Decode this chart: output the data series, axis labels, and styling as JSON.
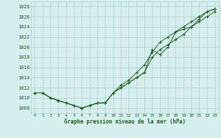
{
  "xlabel": "Graphe pression niveau de la mer (hPa)",
  "ylim": [
    1007,
    1029
  ],
  "xlim": [
    -0.5,
    23.5
  ],
  "yticks": [
    1008,
    1010,
    1012,
    1014,
    1016,
    1018,
    1020,
    1022,
    1024,
    1026,
    1028
  ],
  "xticks": [
    0,
    1,
    2,
    3,
    4,
    5,
    6,
    7,
    8,
    9,
    10,
    11,
    12,
    13,
    14,
    15,
    16,
    17,
    18,
    19,
    20,
    21,
    22,
    23
  ],
  "bg_color": "#d6eeee",
  "grid_color": "#aacccc",
  "line_color": "#1a5c1a",
  "line1_x": [
    0,
    1,
    2,
    3,
    4,
    5,
    6,
    7,
    8,
    9,
    10,
    11,
    12,
    13,
    14,
    15,
    16,
    17,
    18,
    19,
    20,
    21,
    22,
    23
  ],
  "line1_y": [
    1011,
    1011,
    1010,
    1009.5,
    1009,
    1008.5,
    1008,
    1008.5,
    1009,
    1009,
    1011,
    1012,
    1013,
    1014,
    1015,
    1019.5,
    1018.5,
    1020,
    1023,
    1023.5,
    1024,
    1025.5,
    1027,
    1027.5
  ],
  "line2_x": [
    0,
    1,
    2,
    3,
    4,
    5,
    6,
    7,
    8,
    9,
    10,
    11,
    12,
    13,
    14,
    15,
    16,
    17,
    18,
    19,
    20,
    21,
    22,
    23
  ],
  "line2_y": [
    1011,
    1011,
    1010,
    1009.5,
    1009,
    1008.5,
    1008,
    1008.5,
    1009,
    1009,
    1011,
    1012.5,
    1013.5,
    1015,
    1016.5,
    1019,
    1021,
    1022,
    1023,
    1024,
    1025,
    1026,
    1027,
    1027.5
  ],
  "line3_x": [
    0,
    1,
    2,
    3,
    4,
    5,
    6,
    7,
    8,
    9,
    10,
    11,
    12,
    13,
    14,
    15,
    16,
    17,
    18,
    19,
    20,
    21,
    22,
    23
  ],
  "line3_y": [
    1011,
    1011,
    1010,
    1009.5,
    1009,
    1008.5,
    1008,
    1008.5,
    1009,
    1009,
    1011,
    1012,
    1013,
    1014,
    1015,
    1018,
    1019.5,
    1020.5,
    1021.5,
    1022.5,
    1024,
    1025,
    1026,
    1027
  ],
  "marker": "+"
}
